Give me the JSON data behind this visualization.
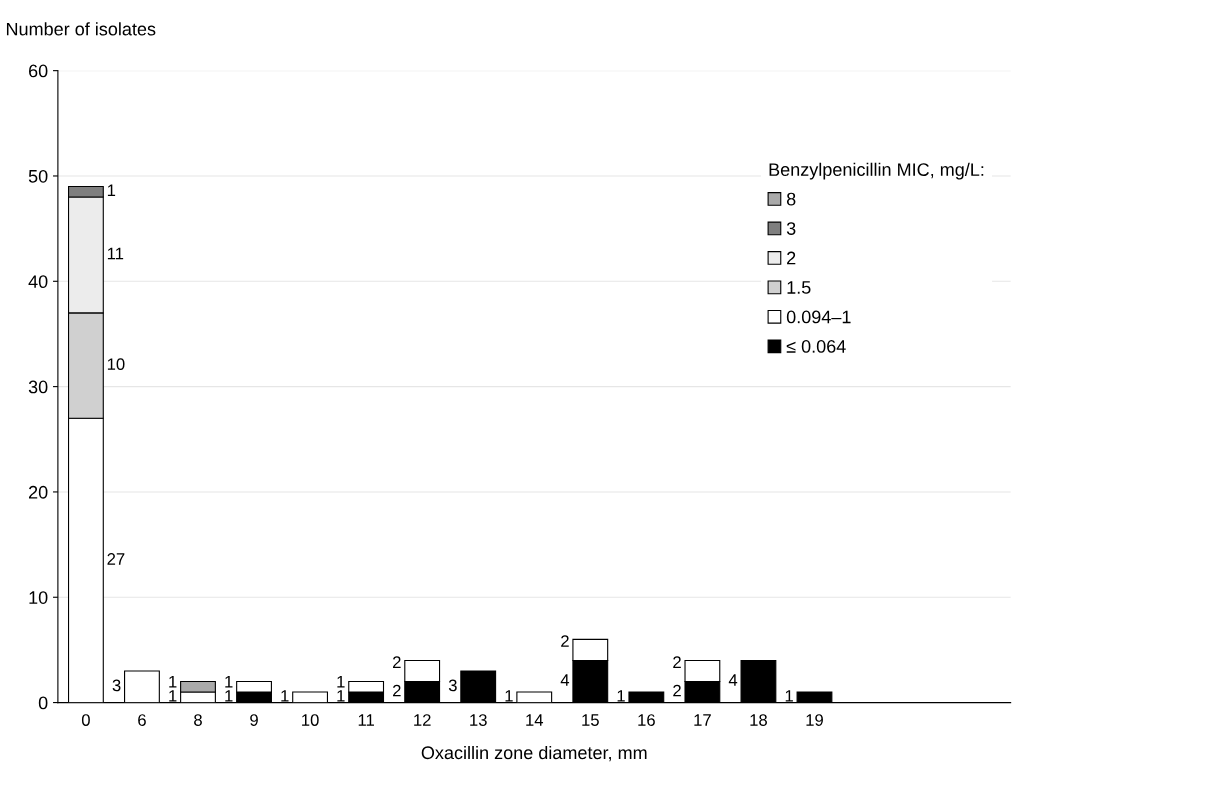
{
  "chart_data": {
    "type": "bar",
    "stacked": true,
    "xlabel": "Oxacillin zone diameter, mm",
    "ylabel": "Number of isolates",
    "categories": [
      "0",
      "6",
      "8",
      "9",
      "10",
      "11",
      "12",
      "13",
      "14",
      "15",
      "16",
      "17",
      "18",
      "19",
      null,
      null,
      null
    ],
    "series": [
      {
        "name": "≤ 0.064",
        "color": "#000000",
        "values": [
          null,
          null,
          null,
          1,
          null,
          1,
          2,
          3,
          null,
          4,
          1,
          2,
          4,
          1,
          null,
          null,
          null
        ]
      },
      {
        "name": "0.094–1",
        "color": "#ffffff",
        "values": [
          27,
          3,
          1,
          1,
          1,
          1,
          2,
          null,
          1,
          2,
          null,
          2,
          null,
          null,
          null,
          null,
          null
        ]
      },
      {
        "name": "1.5",
        "color": "#d0d0d0",
        "values": [
          10,
          null,
          null,
          null,
          null,
          null,
          null,
          null,
          null,
          null,
          null,
          null,
          null,
          null,
          null,
          null,
          null
        ]
      },
      {
        "name": "2",
        "color": "#ececec",
        "values": [
          11,
          null,
          null,
          null,
          null,
          null,
          null,
          null,
          null,
          null,
          null,
          null,
          null,
          null,
          null,
          null,
          null
        ]
      },
      {
        "name": "3",
        "color": "#7f7f7f",
        "values": [
          1,
          null,
          null,
          null,
          null,
          null,
          null,
          null,
          null,
          null,
          null,
          null,
          null,
          null,
          null,
          null,
          null
        ]
      },
      {
        "name": "8",
        "color": "#aaaaaa",
        "values": [
          null,
          null,
          1,
          null,
          null,
          null,
          null,
          null,
          null,
          null,
          null,
          null,
          null,
          null,
          null,
          null,
          null
        ]
      }
    ],
    "ylim": [
      0,
      60
    ],
    "yticks": [
      0,
      10,
      20,
      30,
      40,
      50,
      60
    ],
    "grid": "y",
    "legend": "top right",
    "legend_title": "Benzylpenicillin MIC, mg/L:",
    "data_labels": true
  }
}
